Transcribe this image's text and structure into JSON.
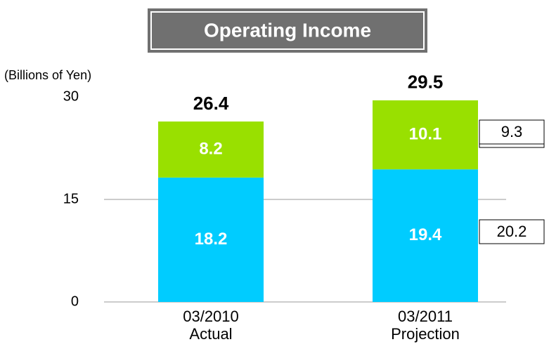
{
  "chart_data": {
    "type": "stacked_bar",
    "title": "Operating Income",
    "y_label": "(Billions of Yen)",
    "categories": [
      [
        "03/2010",
        "Actual"
      ],
      [
        "03/2011",
        "Projection"
      ]
    ],
    "series": [
      {
        "color": "#00ccff",
        "values": [
          18.2,
          19.4
        ]
      },
      {
        "color": "#99e000",
        "values": [
          8.2,
          10.1
        ]
      }
    ],
    "totals": [
      26.4,
      29.5
    ],
    "boxed_values": [
      29.5,
      9.3,
      20.2
    ],
    "ylim": [
      0,
      30
    ],
    "yticks": [
      0,
      15,
      30
    ],
    "grid": true
  }
}
